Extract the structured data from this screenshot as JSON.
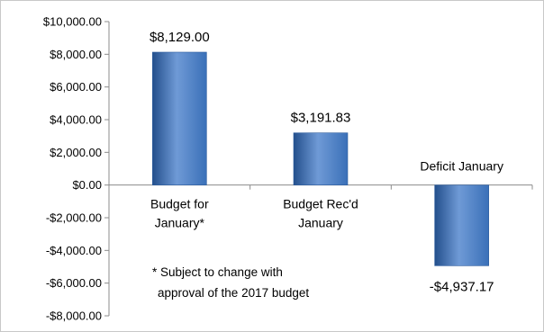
{
  "chart_data": {
    "type": "bar",
    "title": "",
    "xlabel": "",
    "ylabel": "",
    "categories": [
      [
        "Budget for",
        "January*"
      ],
      [
        "Budget Rec'd",
        "January"
      ],
      [
        "Deficit January"
      ]
    ],
    "values": [
      8129.0,
      3191.83,
      -4937.17
    ],
    "data_labels": [
      "$8,129.00",
      "$3,191.83",
      "-$4,937.17"
    ],
    "ylim": [
      -8000,
      10000
    ],
    "yticks": [
      10000,
      8000,
      6000,
      4000,
      2000,
      0,
      -2000,
      -4000,
      -6000,
      -8000
    ],
    "ytick_labels": [
      "$10,000.00",
      "$8,000.00",
      "$6,000.00",
      "$4,000.00",
      "$2,000.00",
      "$0.00",
      "-$2,000.00",
      "-$4,000.00",
      "-$6,000.00",
      "-$8,000.00"
    ],
    "grid": false,
    "bar_color": "#3a70b8",
    "bar_color_light": "#6f9ad6",
    "bar_color_dark": "#234f8c"
  },
  "note": {
    "lines": [
      "* Subject to change with",
      "approval of the 2017 budget"
    ]
  }
}
